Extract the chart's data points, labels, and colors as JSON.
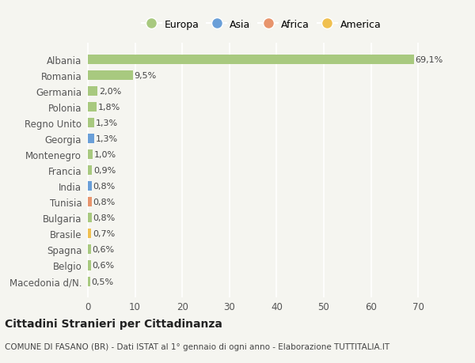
{
  "categories": [
    "Macedonia d/N.",
    "Belgio",
    "Spagna",
    "Brasile",
    "Bulgaria",
    "Tunisia",
    "India",
    "Francia",
    "Montenegro",
    "Georgia",
    "Regno Unito",
    "Polonia",
    "Germania",
    "Romania",
    "Albania"
  ],
  "values": [
    0.5,
    0.6,
    0.6,
    0.7,
    0.8,
    0.8,
    0.8,
    0.9,
    1.0,
    1.3,
    1.3,
    1.8,
    2.0,
    9.5,
    69.1
  ],
  "labels": [
    "0,5%",
    "0,6%",
    "0,6%",
    "0,7%",
    "0,8%",
    "0,8%",
    "0,8%",
    "0,9%",
    "1,0%",
    "1,3%",
    "1,3%",
    "1,8%",
    "2,0%",
    "9,5%",
    "69,1%"
  ],
  "continents": [
    "Europa",
    "Europa",
    "Europa",
    "America",
    "Europa",
    "Africa",
    "Asia",
    "Europa",
    "Europa",
    "Asia",
    "Europa",
    "Europa",
    "Europa",
    "Europa",
    "Europa"
  ],
  "continent_colors": {
    "Europa": "#a8c97f",
    "Asia": "#6a9fd8",
    "Africa": "#e8956d",
    "America": "#f0c050"
  },
  "legend_order": [
    "Europa",
    "Asia",
    "Africa",
    "America"
  ],
  "title": "Cittadini Stranieri per Cittadinanza",
  "subtitle": "COMUNE DI FASANO (BR) - Dati ISTAT al 1° gennaio di ogni anno - Elaborazione TUTTITALIA.IT",
  "xlabel_ticks": [
    0,
    10,
    20,
    30,
    40,
    50,
    60,
    70
  ],
  "xlim": [
    -0.5,
    74
  ],
  "background_color": "#f5f5f0",
  "grid_color": "#ffffff",
  "bar_height": 0.6
}
